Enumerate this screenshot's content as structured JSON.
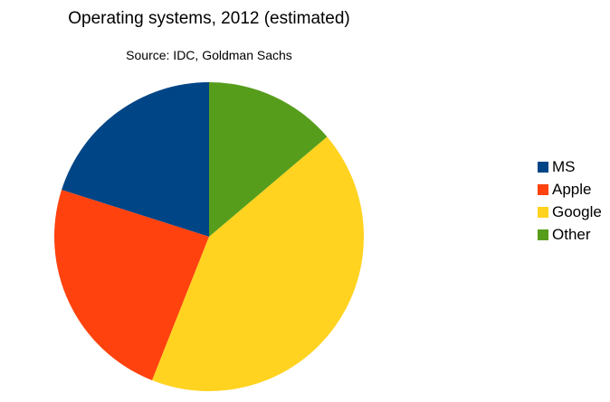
{
  "chart_data": {
    "type": "pie",
    "title": "Operating systems, 2012 (estimated)",
    "subtitle": "Source: IDC, Goldman Sachs",
    "legend_position": "right",
    "slices": [
      {
        "label": "MS",
        "value": 20.1,
        "color": "#004586"
      },
      {
        "label": "Apple",
        "value": 23.9,
        "color": "#ff420e"
      },
      {
        "label": "Google",
        "value": 42.2,
        "color": "#ffd320"
      },
      {
        "label": "Other",
        "value": 13.8,
        "color": "#579d1c"
      }
    ]
  }
}
